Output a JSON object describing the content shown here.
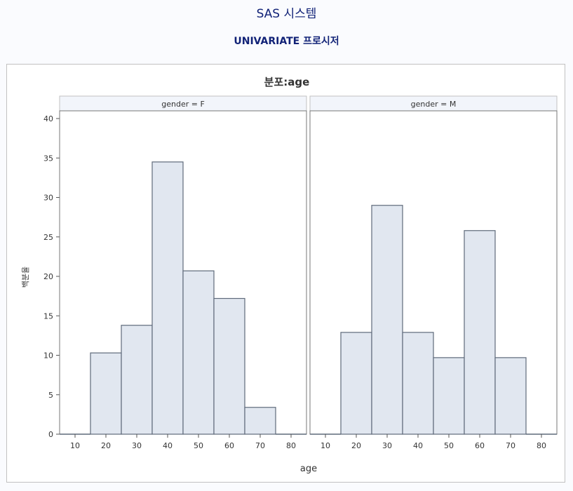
{
  "page": {
    "system_title": "SAS 시스템",
    "procedure_title": "UNIVARIATE 프로시저"
  },
  "colors": {
    "title": "#112277",
    "bar_fill": "#e1e7f0",
    "bar_stroke": "#5f6a7a",
    "panel_header": "#f2f5fb",
    "frame_border": "#c1c1c1"
  },
  "chart_data": {
    "type": "bar",
    "title": "분포:age",
    "xlabel": "age",
    "ylabel": "백분율",
    "ylim": [
      0,
      40
    ],
    "yticks": [
      0,
      5,
      10,
      15,
      20,
      25,
      30,
      35,
      40
    ],
    "xlim": [
      5,
      85
    ],
    "xticks": [
      10,
      20,
      30,
      40,
      50,
      60,
      70,
      80
    ],
    "bin_width": 10,
    "bin_midpoints": [
      10,
      20,
      30,
      40,
      50,
      60,
      70,
      80
    ],
    "grid": false,
    "panels": [
      {
        "label": "gender = F",
        "values": [
          0,
          10.3,
          13.8,
          34.5,
          20.7,
          17.2,
          3.4,
          0
        ]
      },
      {
        "label": "gender = M",
        "values": [
          0,
          12.9,
          29.0,
          12.9,
          9.7,
          25.8,
          9.7,
          0
        ]
      }
    ]
  }
}
